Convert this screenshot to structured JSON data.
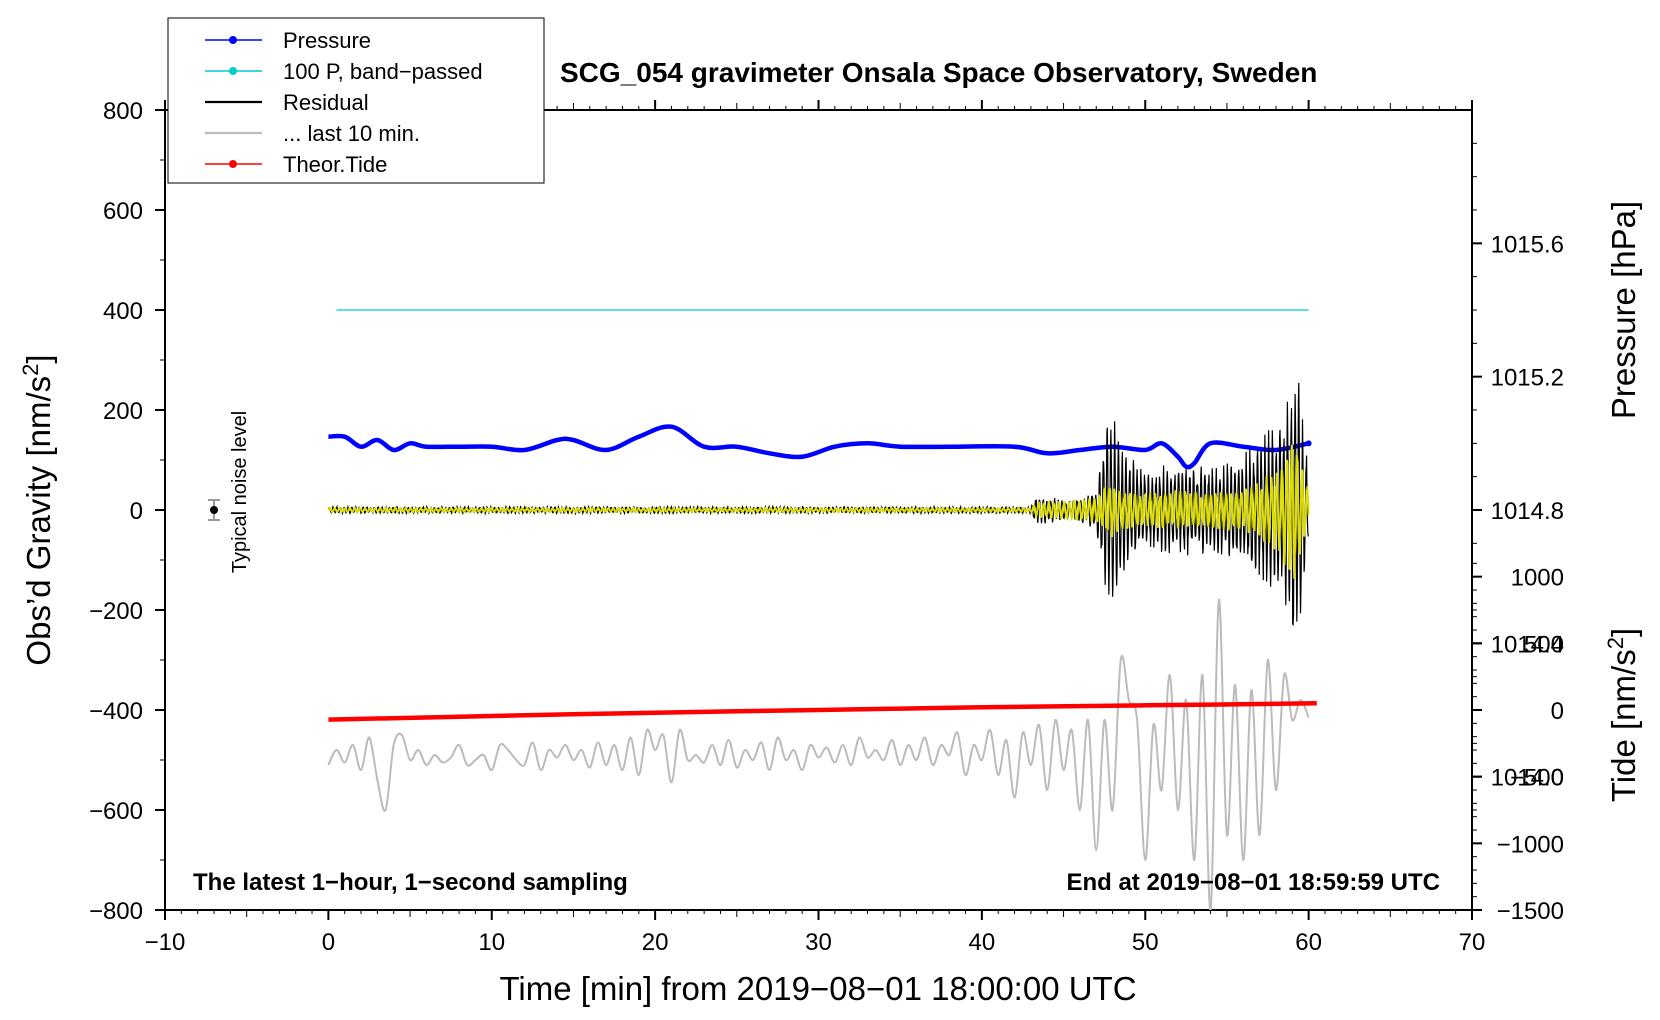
{
  "chart_data": {
    "type": "line",
    "title": "SCG_054 gravimeter Onsala Space Observatory, Sweden",
    "xlabel": "Time [min] from 2019−08−01 18:00:00 UTC",
    "ylabel_left": "Obs’d Gravity [nm/s",
    "ylabel_right_top": "Pressure [hPa]",
    "ylabel_right_bottom": "Tide [nm/s",
    "superscript": "2",
    "closing_bracket": "]",
    "xlim": [
      -10,
      70
    ],
    "ylim_left": [
      -800,
      800
    ],
    "ylim_pressure": [
      1013.6,
      1016.0
    ],
    "ylim_tide": [
      -1500,
      4500
    ],
    "x_ticks": [
      -10,
      0,
      10,
      20,
      30,
      40,
      50,
      60,
      70
    ],
    "x_tick_labels": [
      "−10",
      "0",
      "10",
      "20",
      "30",
      "40",
      "50",
      "60",
      "70"
    ],
    "y_left_ticks": [
      800,
      600,
      400,
      200,
      0,
      -200,
      -400,
      -600,
      -800
    ],
    "y_left_tick_labels": [
      "800",
      "600",
      "400",
      "200",
      "0",
      "−200",
      "−400",
      "−600",
      "−800"
    ],
    "y_pressure_ticks": [
      1015.6,
      1015.2,
      1014.8,
      1014.4,
      1014.0
    ],
    "y_pressure_tick_labels": [
      "1015.6",
      "1015.2",
      "1014.8",
      "1014.4",
      "1014.0"
    ],
    "y_tide_ticks": [
      1000,
      500,
      0,
      -500,
      -1000,
      -1500
    ],
    "y_tide_tick_labels": [
      "1000",
      "500",
      "0",
      "−500",
      "−1000",
      "−1500"
    ],
    "legend": [
      {
        "label": "Pressure",
        "color": "#0000ff",
        "style": "line-dot"
      },
      {
        "label": "100 P, band−passed",
        "color": "#00cccc",
        "style": "line-dot"
      },
      {
        "label": "Residual",
        "color": "#000000",
        "style": "line"
      },
      {
        "label": "... last 10 min.",
        "color": "#bbbbbb",
        "style": "line"
      },
      {
        "label": "Theor.Tide",
        "color": "#ff0000",
        "style": "line-dot"
      }
    ],
    "noise_label": "Typical noise level",
    "noise_point": {
      "x": -7,
      "y": 0,
      "err": 20
    },
    "left_note": "The latest 1−hour, 1−second sampling",
    "right_note": "End at 2019−08−01 18:59:59 UTC",
    "series": {
      "pressure": {
        "name": "Pressure",
        "color": "#0000ff",
        "axis": "pressure",
        "x": [
          0,
          1,
          2,
          3,
          4,
          5,
          6,
          8,
          10,
          12,
          14,
          15,
          17,
          19,
          21,
          23,
          25,
          27,
          29,
          31,
          33,
          35,
          38,
          42,
          44,
          46,
          48,
          50,
          51,
          52,
          52.5,
          53,
          54,
          56,
          58,
          60
        ],
        "y": [
          1015.02,
          1015.02,
          1014.99,
          1015.01,
          1014.98,
          1015.0,
          1014.99,
          1014.99,
          1014.99,
          1014.98,
          1015.01,
          1015.01,
          1014.98,
          1015.02,
          1015.05,
          1014.99,
          1014.99,
          1014.97,
          1014.96,
          1014.99,
          1015.0,
          1014.99,
          1014.99,
          1014.99,
          1014.97,
          1014.98,
          1014.99,
          1014.98,
          1015.0,
          1014.96,
          1014.93,
          1014.94,
          1015.0,
          1014.99,
          1014.98,
          1015.0
        ]
      },
      "band_passed": {
        "name": "100 P, band−passed",
        "color": "#00cccc",
        "axis": "left",
        "x": [
          0.5,
          60
        ],
        "y": [
          400,
          400
        ]
      },
      "tide": {
        "name": "Theor.Tide",
        "color": "#ff0000",
        "axis": "tide",
        "x": [
          0,
          10,
          20,
          30,
          40,
          50,
          60.5
        ],
        "y": [
          -72,
          -45,
          -20,
          0,
          20,
          35,
          50
        ]
      },
      "residual": {
        "name": "Residual",
        "color": "#000000",
        "axis": "left",
        "x": [
          0,
          43,
          43.3,
          45.5,
          47,
          47.5,
          47.8,
          48.2,
          48.5,
          50,
          52,
          54,
          56,
          57.5,
          58.2,
          58.6,
          59.0,
          59.3,
          59.6,
          60
        ],
        "amp": [
          7,
          7,
          30,
          20,
          40,
          150,
          200,
          200,
          130,
          80,
          100,
          90,
          110,
          170,
          180,
          200,
          320,
          300,
          220,
          80
        ]
      },
      "yellow": {
        "color": "#dddd00",
        "axis": "left",
        "x": [
          0,
          43,
          43.3,
          47,
          47.8,
          48.5,
          50,
          52,
          54,
          56,
          57,
          58.2,
          59.0,
          59.4,
          60
        ],
        "amp": [
          4,
          4,
          15,
          25,
          60,
          40,
          35,
          40,
          40,
          45,
          60,
          90,
          160,
          130,
          40
        ]
      },
      "last10": {
        "name": "... last 10 min.",
        "color": "#bbbbbb",
        "axis": "left",
        "x": [
          0,
          0.5,
          1,
          1.5,
          2,
          2.5,
          3,
          3.5,
          4,
          4.5,
          5,
          5.5,
          6,
          6.5,
          7,
          7.5,
          8,
          8.5,
          9,
          9.5,
          10,
          10.5,
          11,
          11.5,
          12,
          12.5,
          13,
          13.5,
          14,
          14.5,
          15,
          15.5,
          16,
          16.5,
          17,
          17.5,
          18,
          18.5,
          19,
          19.5,
          20,
          20.5,
          21,
          21.5,
          22,
          22.5,
          23,
          23.5,
          24,
          24.5,
          25,
          25.5,
          26,
          26.5,
          27,
          27.5,
          28,
          28.5,
          29,
          29.5,
          30,
          30.5,
          31,
          31.5,
          32,
          32.5,
          33,
          33.5,
          34,
          34.5,
          35,
          35.5,
          36,
          36.5,
          37,
          37.5,
          38,
          38.5,
          39,
          39.5,
          40,
          40.5,
          41,
          41.5,
          42,
          42.5,
          43,
          43.5,
          44,
          44.5,
          45,
          45.5,
          46,
          46.5,
          47,
          47.5,
          48,
          48.5,
          49,
          49.5,
          50,
          50.5,
          51,
          51.5,
          52,
          52.5,
          53,
          53.5,
          54,
          54.5,
          55,
          55.5,
          56,
          56.5,
          57,
          57.5,
          58,
          58.5,
          59,
          59.5,
          60
        ],
        "y": [
          -510,
          -480,
          -505,
          -470,
          -520,
          -455,
          -540,
          -600,
          -470,
          -450,
          -500,
          -480,
          -510,
          -490,
          -505,
          -495,
          -470,
          -510,
          -500,
          -490,
          -520,
          -470,
          -480,
          -500,
          -510,
          -465,
          -520,
          -480,
          -495,
          -470,
          -500,
          -480,
          -515,
          -465,
          -510,
          -470,
          -520,
          -455,
          -530,
          -440,
          -480,
          -450,
          -545,
          -440,
          -500,
          -490,
          -505,
          -470,
          -510,
          -460,
          -515,
          -480,
          -500,
          -465,
          -520,
          -455,
          -500,
          -480,
          -520,
          -470,
          -495,
          -475,
          -505,
          -470,
          -510,
          -455,
          -495,
          -480,
          -500,
          -460,
          -510,
          -470,
          -500,
          -455,
          -510,
          -470,
          -490,
          -445,
          -530,
          -470,
          -500,
          -440,
          -530,
          -460,
          -575,
          -445,
          -510,
          -430,
          -560,
          -420,
          -520,
          -440,
          -600,
          -420,
          -680,
          -420,
          -600,
          -300,
          -380,
          -420,
          -700,
          -430,
          -560,
          -330,
          -600,
          -380,
          -700,
          -330,
          -800,
          -180,
          -650,
          -350,
          -700,
          -360,
          -650,
          -300,
          -560,
          -330,
          -420,
          -380,
          -415
        ]
      }
    }
  }
}
